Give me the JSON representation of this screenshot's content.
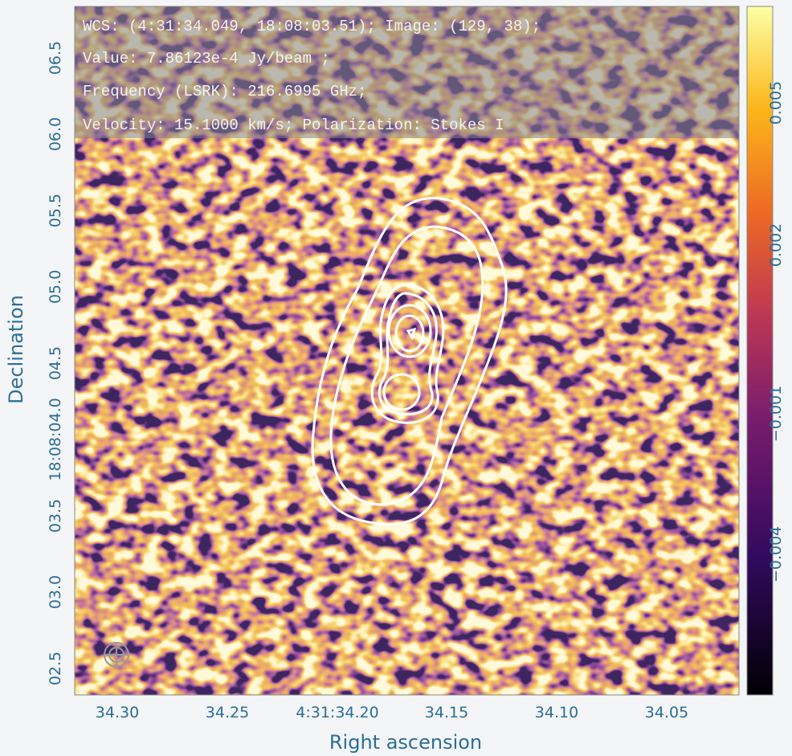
{
  "info": {
    "lines": [
      "WCS: (4:31:34.049, 18:08:03.51); Image: (129, 38);",
      "Value:  7.86123e-4 Jy/beam ;",
      "Frequency (LSRK): 216.6995 GHz;",
      "Velocity: 15.1000 km/s; Polarization: Stokes I"
    ]
  },
  "axes": {
    "y_title": "Declination",
    "x_title": "Right ascension",
    "y_ticks": [
      "06.5",
      "06.0",
      "05.5",
      "05.0",
      "04.5",
      "18:08:04.0",
      "03.5",
      "03.0",
      "02.5"
    ],
    "x_ticks": [
      "34.30",
      "34.25",
      "4:31:34.20",
      "34.15",
      "34.10",
      "34.05"
    ]
  },
  "colorbar": {
    "ticks": [
      "0.005",
      "0.002",
      "−0.001",
      "−0.004"
    ]
  }
}
